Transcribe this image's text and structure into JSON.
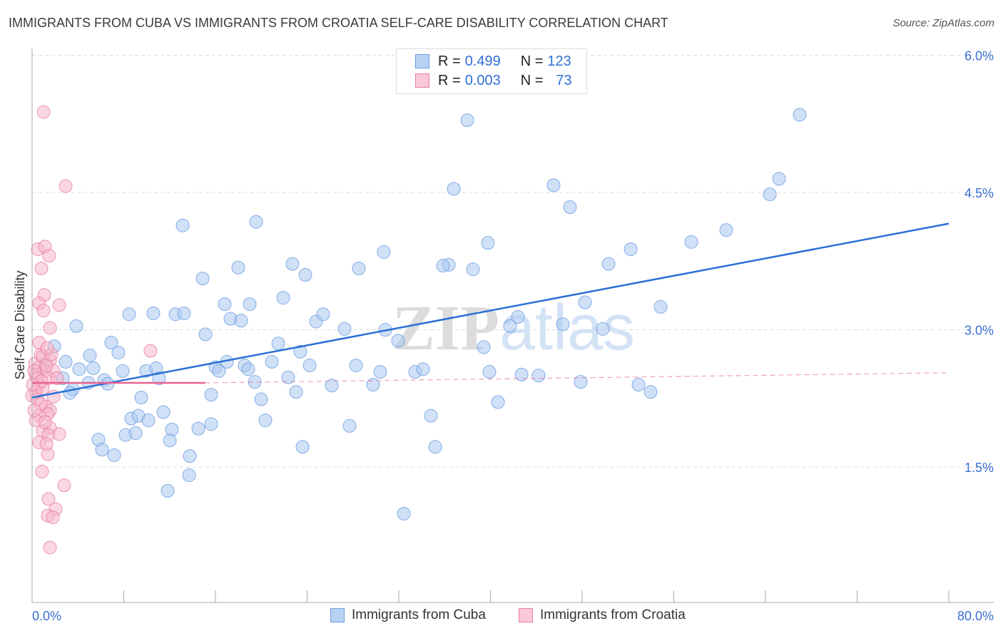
{
  "chart_data": {
    "type": "scatter",
    "title": "IMMIGRANTS FROM CUBA VS IMMIGRANTS FROM CROATIA SELF-CARE DISABILITY CORRELATION CHART",
    "source": "Source: ZipAtlas.com",
    "ylabel": "Self-Care Disability",
    "xlabel": "",
    "xlim": [
      0,
      80
    ],
    "ylim": [
      0,
      6.6
    ],
    "x_tick_labels": [
      "0.0%",
      "80.0%"
    ],
    "y_ticks": [
      1.5,
      3.0,
      4.5,
      6.0
    ],
    "y_tick_labels": [
      "1.5%",
      "3.0%",
      "4.5%",
      "6.0%"
    ],
    "grid": true,
    "watermark": "ZIPatlas",
    "legend_stats": [
      {
        "r_label": "R =",
        "r": "0.499",
        "n_label": "N =",
        "n": "123"
      },
      {
        "r_label": "R =",
        "r": "0.003",
        "n_label": "N =",
        "n": "73"
      }
    ],
    "series": [
      {
        "name": "Immigrants from Cuba",
        "color": "#6a9be0",
        "fill": "#a9c8f0",
        "trend": {
          "x": [
            0,
            80
          ],
          "y": [
            2.26,
            4.16
          ],
          "dashed_from": null
        },
        "points": [
          [
            37.98,
            5.29
          ],
          [
            66.99,
            5.35
          ],
          [
            36.8,
            4.54
          ],
          [
            45.51,
            4.58
          ],
          [
            64.38,
            4.48
          ],
          [
            65.19,
            4.65
          ],
          [
            46.94,
            4.34
          ],
          [
            13.14,
            4.14
          ],
          [
            19.55,
            4.18
          ],
          [
            60.58,
            4.09
          ],
          [
            57.53,
            3.96
          ],
          [
            39.78,
            3.95
          ],
          [
            52.24,
            3.88
          ],
          [
            30.69,
            3.85
          ],
          [
            50.31,
            3.72
          ],
          [
            36.36,
            3.71
          ],
          [
            35.86,
            3.7
          ],
          [
            38.48,
            3.66
          ],
          [
            22.72,
            3.72
          ],
          [
            17.99,
            3.68
          ],
          [
            28.51,
            3.67
          ],
          [
            23.85,
            3.6
          ],
          [
            14.88,
            3.56
          ],
          [
            21.92,
            3.35
          ],
          [
            16.81,
            3.28
          ],
          [
            18.99,
            3.28
          ],
          [
            8.47,
            3.17
          ],
          [
            10.58,
            3.18
          ],
          [
            12.51,
            3.17
          ],
          [
            13.26,
            3.18
          ],
          [
            17.31,
            3.12
          ],
          [
            18.24,
            3.1
          ],
          [
            24.78,
            3.09
          ],
          [
            25.4,
            3.17
          ],
          [
            42.4,
            3.14
          ],
          [
            54.85,
            3.25
          ],
          [
            48.25,
            3.3
          ],
          [
            46.32,
            3.06
          ],
          [
            41.71,
            3.04
          ],
          [
            49.81,
            3.01
          ],
          [
            27.27,
            3.01
          ],
          [
            30.82,
            3.0
          ],
          [
            15.13,
            2.95
          ],
          [
            3.86,
            3.04
          ],
          [
            6.91,
            2.86
          ],
          [
            21.48,
            2.85
          ],
          [
            39.41,
            2.81
          ],
          [
            31.94,
            2.88
          ],
          [
            1.93,
            2.82
          ],
          [
            5.04,
            2.72
          ],
          [
            7.53,
            2.75
          ],
          [
            23.41,
            2.76
          ],
          [
            2.93,
            2.65
          ],
          [
            1.12,
            2.63
          ],
          [
            4.11,
            2.57
          ],
          [
            5.35,
            2.58
          ],
          [
            7.91,
            2.55
          ],
          [
            9.96,
            2.55
          ],
          [
            10.83,
            2.58
          ],
          [
            16.0,
            2.59
          ],
          [
            16.31,
            2.55
          ],
          [
            17.0,
            2.65
          ],
          [
            18.55,
            2.61
          ],
          [
            18.86,
            2.57
          ],
          [
            20.92,
            2.65
          ],
          [
            24.22,
            2.61
          ],
          [
            28.27,
            2.61
          ],
          [
            30.38,
            2.54
          ],
          [
            33.43,
            2.54
          ],
          [
            34.12,
            2.57
          ],
          [
            39.91,
            2.54
          ],
          [
            42.71,
            2.51
          ],
          [
            44.2,
            2.5
          ],
          [
            22.35,
            2.48
          ],
          [
            2.68,
            2.47
          ],
          [
            6.29,
            2.45
          ],
          [
            11.08,
            2.47
          ],
          [
            19.43,
            2.43
          ],
          [
            6.6,
            2.41
          ],
          [
            4.92,
            2.42
          ],
          [
            3.55,
            2.35
          ],
          [
            3.3,
            2.31
          ],
          [
            26.15,
            2.39
          ],
          [
            29.76,
            2.4
          ],
          [
            47.88,
            2.43
          ],
          [
            52.92,
            2.4
          ],
          [
            53.98,
            2.32
          ],
          [
            23.04,
            2.32
          ],
          [
            15.63,
            2.29
          ],
          [
            9.53,
            2.26
          ],
          [
            19.99,
            2.24
          ],
          [
            40.66,
            2.21
          ],
          [
            11.46,
            2.1
          ],
          [
            34.8,
            2.06
          ],
          [
            8.65,
            2.03
          ],
          [
            9.28,
            2.06
          ],
          [
            10.15,
            2.01
          ],
          [
            20.36,
            2.01
          ],
          [
            15.63,
            1.97
          ],
          [
            27.71,
            1.95
          ],
          [
            14.51,
            1.92
          ],
          [
            12.2,
            1.91
          ],
          [
            8.16,
            1.85
          ],
          [
            9.03,
            1.87
          ],
          [
            5.79,
            1.8
          ],
          [
            12.02,
            1.79
          ],
          [
            6.1,
            1.69
          ],
          [
            23.6,
            1.72
          ],
          [
            35.18,
            1.72
          ],
          [
            7.16,
            1.63
          ],
          [
            13.76,
            1.62
          ],
          [
            13.7,
            1.41
          ],
          [
            11.83,
            1.24
          ],
          [
            32.44,
            0.99
          ]
        ]
      },
      {
        "name": "Immigrants from Croatia",
        "color": "#e87ea3",
        "fill": "#f6b6ca",
        "trend": {
          "x": [
            0,
            15.1,
            80
          ],
          "y": [
            2.42,
            2.42,
            2.53
          ],
          "dashed_from": 15.1
        },
        "points": [
          [
            1.0,
            5.38
          ],
          [
            2.93,
            4.57
          ],
          [
            0.5,
            3.88
          ],
          [
            1.12,
            3.91
          ],
          [
            1.49,
            3.81
          ],
          [
            0.81,
            3.67
          ],
          [
            1.06,
            3.38
          ],
          [
            0.62,
            3.29
          ],
          [
            2.37,
            3.27
          ],
          [
            1.0,
            3.21
          ],
          [
            1.56,
            3.02
          ],
          [
            10.33,
            2.77
          ],
          [
            0.75,
            2.73
          ],
          [
            1.56,
            2.67
          ],
          [
            0.25,
            2.63
          ],
          [
            0.62,
            2.59
          ],
          [
            1.06,
            2.55
          ],
          [
            0.31,
            2.51
          ],
          [
            1.87,
            2.55
          ],
          [
            1.43,
            2.47
          ],
          [
            0.62,
            2.4
          ],
          [
            0.93,
            2.36
          ],
          [
            0.31,
            2.32
          ],
          [
            0.0,
            2.28
          ],
          [
            1.87,
            2.27
          ],
          [
            1.18,
            2.16
          ],
          [
            1.56,
            2.12
          ],
          [
            1.37,
            2.08
          ],
          [
            0.62,
            2.06
          ],
          [
            0.31,
            2.01
          ],
          [
            1.56,
            1.93
          ],
          [
            0.93,
            1.89
          ],
          [
            1.43,
            1.85
          ],
          [
            2.37,
            1.86
          ],
          [
            0.62,
            1.77
          ],
          [
            1.25,
            1.75
          ],
          [
            1.37,
            1.64
          ],
          [
            0.87,
            1.45
          ],
          [
            2.8,
            1.3
          ],
          [
            1.43,
            1.15
          ],
          [
            2.05,
            1.04
          ],
          [
            1.37,
            0.97
          ],
          [
            1.81,
            0.95
          ],
          [
            1.56,
            0.62
          ],
          [
            0.19,
            2.55
          ],
          [
            0.44,
            2.47
          ],
          [
            0.81,
            2.44
          ],
          [
            0.06,
            2.4
          ],
          [
            0.93,
            2.71
          ],
          [
            1.25,
            2.61
          ],
          [
            1.68,
            2.73
          ],
          [
            0.44,
            2.24
          ],
          [
            0.75,
            2.19
          ],
          [
            0.19,
            2.12
          ],
          [
            1.12,
            1.99
          ],
          [
            2.18,
            2.47
          ],
          [
            0.62,
            2.86
          ],
          [
            1.31,
            2.8
          ]
        ]
      }
    ]
  }
}
